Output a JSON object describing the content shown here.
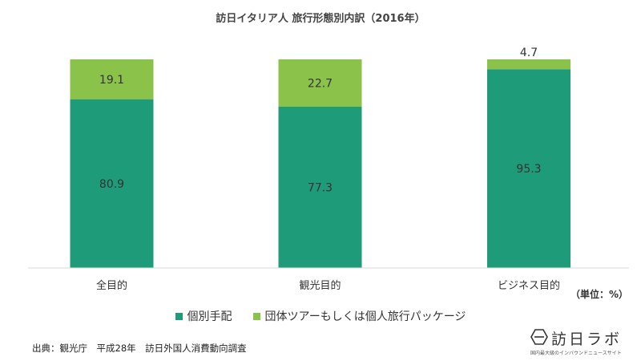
{
  "chart_data": {
    "type": "bar",
    "stacked": true,
    "title": "訪日イタリア人 旅行形態別内訳（2016年）",
    "categories": [
      "全目的",
      "観光目的",
      "ビジネス目的"
    ],
    "series": [
      {
        "name": "個別手配",
        "color": "#1e9c7a",
        "values": [
          80.9,
          77.3,
          95.3
        ]
      },
      {
        "name": "団体ツアーもしくは個人旅行パッケージ",
        "color": "#8bc34a",
        "values": [
          19.1,
          22.7,
          4.7
        ]
      }
    ],
    "ylim": [
      0,
      100
    ],
    "unit_label": "（単位：%）",
    "legend_position": "bottom",
    "grid": false
  },
  "source_note": "出典：観光庁　平成28年　訪日外国人消費動向調査",
  "logo": {
    "name": "訪日ラボ",
    "tagline": "国内最大級のインバウンドニュースサイト"
  }
}
